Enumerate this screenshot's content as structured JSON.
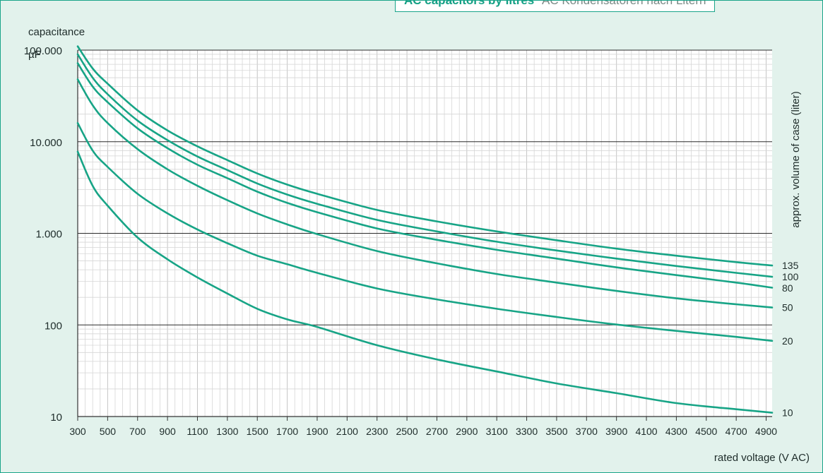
{
  "chart_data": {
    "type": "line",
    "title": "AC capacitors by litres",
    "subtitle": "AC Kondensatoren nach Litern",
    "ylabel": "capacitance",
    "yunit": "µF",
    "xlabel": "rated voltage (V AC)",
    "right_label": "approx. volume of case (liter)",
    "y_scale": "log",
    "ylim": [
      10,
      100000
    ],
    "xlim": [
      300,
      4940
    ],
    "grid": true,
    "y_ticks": [
      {
        "value": 10,
        "label": "10"
      },
      {
        "value": 100,
        "label": "100"
      },
      {
        "value": 1000,
        "label": "1.000"
      },
      {
        "value": 10000,
        "label": "10.000"
      },
      {
        "value": 100000,
        "label": "100.000"
      }
    ],
    "x_ticks": [
      "300",
      "500",
      "700",
      "900",
      "1100",
      "1300",
      "1500",
      "1700",
      "1900",
      "2100",
      "2300",
      "2500",
      "2700",
      "2900",
      "3100",
      "3300",
      "3500",
      "3700",
      "3900",
      "4100",
      "4300",
      "4500",
      "4700",
      "4900"
    ],
    "series": [
      {
        "name": "135",
        "x": [
          300,
          400,
          500,
          700,
          900,
          1100,
          1300,
          1500,
          1700,
          1900,
          2300,
          2700,
          3100,
          3500,
          3900,
          4300,
          4700,
          4940
        ],
        "values": [
          110000,
          63000,
          43000,
          22000,
          13300,
          8900,
          6300,
          4500,
          3400,
          2700,
          1800,
          1350,
          1050,
          840,
          680,
          570,
          485,
          445
        ]
      },
      {
        "name": "100",
        "x": [
          300,
          400,
          500,
          700,
          900,
          1100,
          1300,
          1500,
          1700,
          1900,
          2300,
          2700,
          3100,
          3500,
          3900,
          4300,
          4700,
          4940
        ],
        "values": [
          90000,
          50000,
          33000,
          17000,
          10400,
          6900,
          4900,
          3500,
          2650,
          2100,
          1400,
          1050,
          810,
          650,
          530,
          440,
          370,
          335
        ]
      },
      {
        "name": "80",
        "x": [
          300,
          400,
          500,
          700,
          900,
          1100,
          1300,
          1500,
          1700,
          1900,
          2300,
          2700,
          3100,
          3500,
          3900,
          4300,
          4700,
          4940
        ],
        "values": [
          72000,
          40000,
          27000,
          14000,
          8500,
          5600,
          4000,
          2850,
          2150,
          1700,
          1130,
          850,
          660,
          530,
          425,
          350,
          290,
          255
        ]
      },
      {
        "name": "50",
        "x": [
          300,
          400,
          500,
          700,
          900,
          1100,
          1300,
          1500,
          1700,
          1900,
          2300,
          2700,
          3100,
          3500,
          3900,
          4300,
          4700,
          4940
        ],
        "values": [
          48000,
          25000,
          16000,
          8300,
          5000,
          3300,
          2300,
          1650,
          1250,
          980,
          640,
          470,
          360,
          290,
          235,
          195,
          168,
          155
        ]
      },
      {
        "name": "20",
        "x": [
          300,
          400,
          500,
          700,
          900,
          1100,
          1300,
          1500,
          1700,
          1900,
          2300,
          2700,
          3100,
          3500,
          3900,
          4300,
          4700,
          4940
        ],
        "values": [
          16000,
          8000,
          5300,
          2700,
          1650,
          1100,
          780,
          570,
          460,
          370,
          250,
          190,
          150,
          122,
          101,
          86,
          74,
          67
        ]
      },
      {
        "name": "10",
        "x": [
          300,
          400,
          500,
          700,
          900,
          1100,
          1300,
          1500,
          1700,
          1900,
          2300,
          2700,
          3100,
          3500,
          3900,
          4300,
          4700,
          4940
        ],
        "values": [
          7800,
          3300,
          2000,
          900,
          520,
          330,
          220,
          150,
          115,
          95,
          60,
          42,
          31,
          23,
          18,
          14,
          12,
          11
        ]
      }
    ]
  },
  "style": {
    "background": "#e2f2ec",
    "plot_background": "#ffffff",
    "line_color": "#17a486",
    "title_accent": "#14a085",
    "major_grid": "#2a2a2a",
    "minor_grid": "#d6d6d6"
  }
}
